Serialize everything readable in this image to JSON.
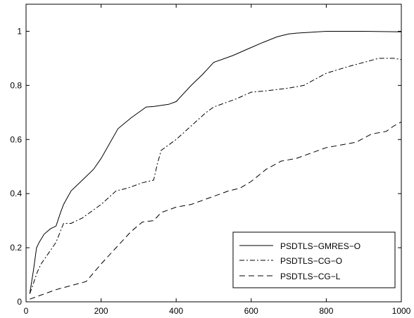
{
  "chart_data": {
    "type": "line",
    "title": "",
    "xlabel": "",
    "ylabel": "",
    "xlim": [
      0,
      1000
    ],
    "ylim": [
      0,
      1.1
    ],
    "xticks": [
      0,
      200,
      400,
      600,
      800,
      1000
    ],
    "yticks": [
      0,
      0.2,
      0.4,
      0.6,
      0.8,
      1
    ],
    "x_tick_labels": [
      "0",
      "200",
      "400",
      "600",
      "800",
      "1000"
    ],
    "y_tick_labels": [
      "0",
      "0.2",
      "0.4",
      "0.6",
      "0.8",
      "1"
    ],
    "grid": false,
    "legend_position": "bottom-right",
    "series": [
      {
        "name": "PSDTLS−GMRES−O",
        "line_style": "solid",
        "color": "#000000",
        "x": [
          10,
          20,
          28,
          35,
          48,
          65,
          80,
          92,
          100,
          120,
          150,
          180,
          200,
          245,
          280,
          320,
          340,
          380,
          400,
          440,
          470,
          500,
          550,
          600,
          630,
          670,
          700,
          720,
          800,
          900,
          1000
        ],
        "y": [
          0.03,
          0.12,
          0.2,
          0.22,
          0.25,
          0.27,
          0.28,
          0.33,
          0.36,
          0.41,
          0.45,
          0.49,
          0.53,
          0.64,
          0.68,
          0.72,
          0.722,
          0.73,
          0.74,
          0.8,
          0.84,
          0.885,
          0.91,
          0.94,
          0.958,
          0.98,
          0.99,
          0.993,
          1.0,
          1.0,
          0.998
        ]
      },
      {
        "name": "PSDTLS−CG−O",
        "line_style": "dash-dot",
        "color": "#000000",
        "x": [
          10,
          20,
          30,
          40,
          60,
          80,
          100,
          120,
          150,
          180,
          200,
          240,
          270,
          310,
          340,
          350,
          360,
          400,
          440,
          480,
          500,
          560,
          600,
          640,
          700,
          740,
          800,
          860,
          900,
          940,
          980,
          1000
        ],
        "y": [
          0.03,
          0.07,
          0.11,
          0.14,
          0.18,
          0.22,
          0.29,
          0.29,
          0.31,
          0.34,
          0.36,
          0.41,
          0.42,
          0.44,
          0.45,
          0.51,
          0.56,
          0.6,
          0.65,
          0.7,
          0.72,
          0.75,
          0.775,
          0.78,
          0.79,
          0.8,
          0.845,
          0.87,
          0.885,
          0.9,
          0.9,
          0.895
        ]
      },
      {
        "name": "PSDTLS−CG−L",
        "line_style": "dashed",
        "color": "#000000",
        "x": [
          10,
          40,
          80,
          120,
          160,
          200,
          240,
          280,
          310,
          340,
          360,
          400,
          440,
          480,
          540,
          570,
          600,
          640,
          680,
          720,
          760,
          800,
          840,
          880,
          920,
          960,
          980,
          1000
        ],
        "y": [
          0.01,
          0.025,
          0.045,
          0.06,
          0.075,
          0.14,
          0.2,
          0.26,
          0.295,
          0.3,
          0.33,
          0.35,
          0.36,
          0.38,
          0.41,
          0.42,
          0.445,
          0.49,
          0.52,
          0.53,
          0.55,
          0.57,
          0.58,
          0.59,
          0.62,
          0.63,
          0.65,
          0.665
        ]
      }
    ]
  }
}
